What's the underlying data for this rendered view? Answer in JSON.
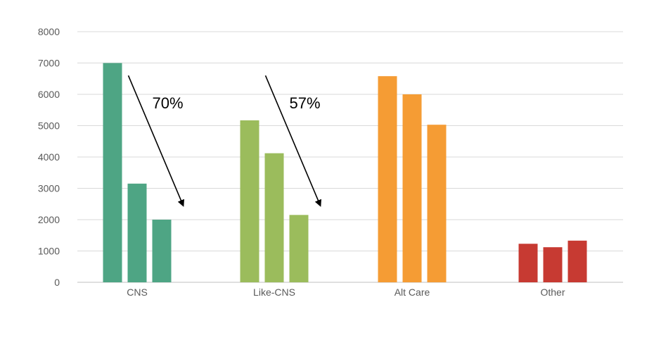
{
  "chart_data": {
    "type": "bar",
    "categories": [
      "CNS",
      "Like-CNS",
      "Alt Care",
      "Other"
    ],
    "bars": [
      {
        "category": "CNS",
        "values": [
          7000,
          3150,
          2000
        ],
        "color": "#4ea584"
      },
      {
        "category": "Like-CNS",
        "values": [
          5170,
          4120,
          2150
        ],
        "color": "#9bbc5c"
      },
      {
        "category": "Alt Care",
        "values": [
          6580,
          6000,
          5030
        ],
        "color": "#f59c34"
      },
      {
        "category": "Other",
        "values": [
          1230,
          1120,
          1330
        ],
        "color": "#c73a32"
      }
    ],
    "yticks": [
      "0",
      "1000",
      "2000",
      "3000",
      "4000",
      "5000",
      "6000",
      "7000",
      "8000"
    ],
    "ylim": [
      0,
      8000
    ],
    "grid": true,
    "annotations": [
      {
        "text": "70%",
        "group": "CNS",
        "from": 6600,
        "to": 2450
      },
      {
        "text": "57%",
        "group": "Like-CNS",
        "from": 6600,
        "to": 2450
      }
    ]
  }
}
